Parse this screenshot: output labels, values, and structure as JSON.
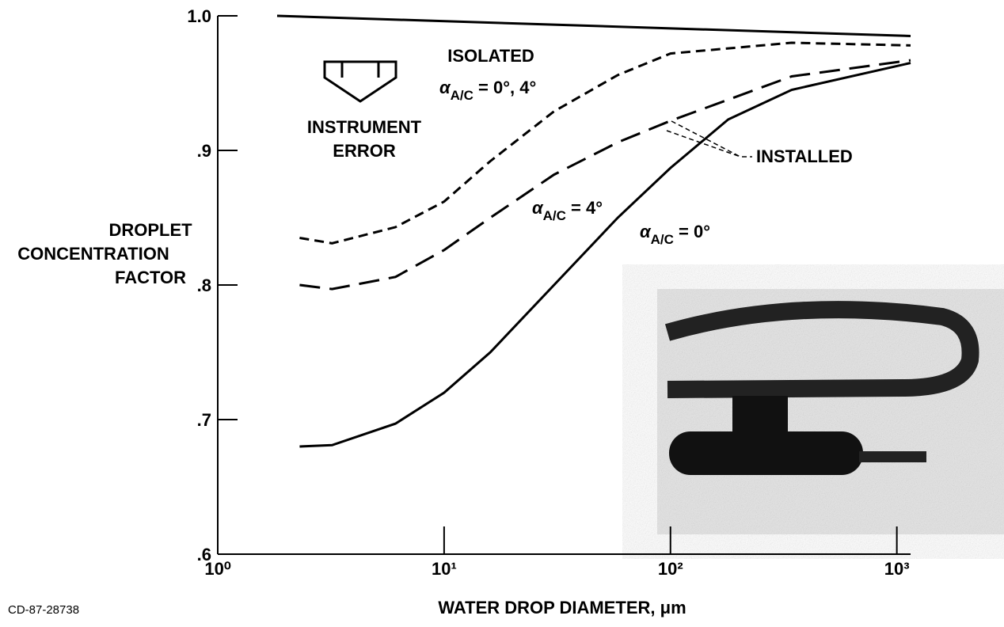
{
  "chart_data": {
    "type": "line",
    "x_label": "WATER DROP DIAMETER, μm",
    "y_label": [
      "DROPLET",
      "CONCENTRATION",
      "FACTOR"
    ],
    "xlim": [
      1,
      1150
    ],
    "ylim": [
      0.6,
      1.0
    ],
    "log_x": true,
    "xticks": [
      {
        "value": 1,
        "label": "10⁰"
      },
      {
        "value": 10,
        "label": "10¹"
      },
      {
        "value": 100,
        "label": "10²"
      },
      {
        "value": 1000,
        "label": "10³"
      }
    ],
    "yticks": [
      {
        "value": 0.6,
        "label": ".6"
      },
      {
        "value": 0.7,
        "label": ".7"
      },
      {
        "value": 0.8,
        "label": ".8"
      },
      {
        "value": 0.9,
        "label": ".9"
      },
      {
        "value": 1.0,
        "label": "1.0"
      }
    ],
    "series": [
      {
        "color": "#000000",
        "style": "solid",
        "x": [
          1.83,
          1150
        ],
        "values": [
          1.0,
          0.985
        ]
      },
      {
        "color": "#000000",
        "style": "short-dash",
        "x": [
          2.3,
          3.2,
          6.1,
          10,
          16,
          30.6,
          58.5,
          100,
          343,
          1150
        ],
        "values": [
          0.835,
          0.831,
          0.843,
          0.862,
          0.892,
          0.929,
          0.956,
          0.972,
          0.98,
          0.978
        ]
      },
      {
        "color": "#000000",
        "style": "long-dash",
        "x": [
          2.3,
          3.2,
          6.1,
          10,
          16,
          30.6,
          58.5,
          100,
          343,
          1150
        ],
        "values": [
          0.8,
          0.797,
          0.806,
          0.826,
          0.85,
          0.882,
          0.906,
          0.922,
          0.955,
          0.967
        ]
      },
      {
        "color": "#000000",
        "style": "solid",
        "x": [
          2.3,
          3.2,
          6.1,
          10,
          16,
          30.6,
          58.5,
          100,
          180,
          343,
          1150
        ],
        "values": [
          0.68,
          0.681,
          0.697,
          0.72,
          0.75,
          0.8,
          0.85,
          0.887,
          0.923,
          0.945,
          0.965
        ]
      }
    ],
    "annotations": {
      "isolated": "ISOLATED",
      "alpha_iso": {
        "symbol": "α",
        "sub": "A/C",
        "text": " = 0°, 4°"
      },
      "instrument": "INSTRUMENT",
      "error": "ERROR",
      "installed": "INSTALLED",
      "alpha_4": {
        "symbol": "α",
        "sub": "A/C",
        "text": " = 4°"
      },
      "alpha_0": {
        "symbol": "α",
        "sub": "A/C",
        "text": " = 0°"
      }
    },
    "figure_id": "CD-87-28738"
  }
}
